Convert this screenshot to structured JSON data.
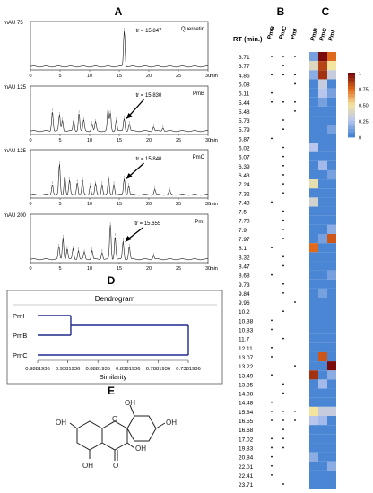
{
  "panels": {
    "A": "A",
    "B": "B",
    "C": "C",
    "D": "D",
    "E": "E"
  },
  "chart_data": [
    {
      "type": "line",
      "panel": "A",
      "x_unit": "min",
      "y_unit": "mAU",
      "x_ticks": [
        0,
        5,
        10,
        15,
        20,
        25,
        30
      ],
      "xlim": [
        0,
        30
      ],
      "chromatograms": [
        {
          "name": "Quercetin",
          "y_max_label": "75",
          "rt_annotation": "tr = 15.847",
          "peaks": [
            [
              15.847,
              1.0
            ]
          ]
        },
        {
          "name": "PmB",
          "y_max_label": "125",
          "rt_annotation": "tr = 15.830",
          "peaks": [
            [
              3.7,
              0.55
            ],
            [
              4.9,
              0.45
            ],
            [
              5.4,
              0.3
            ],
            [
              7.3,
              0.3
            ],
            [
              8.2,
              0.5
            ],
            [
              9.0,
              0.3
            ],
            [
              10.4,
              0.2
            ],
            [
              11.0,
              0.25
            ],
            [
              13.1,
              0.6
            ],
            [
              13.5,
              0.5
            ],
            [
              14.5,
              0.3
            ],
            [
              15.83,
              0.35
            ],
            [
              16.7,
              0.2
            ],
            [
              20.8,
              0.12
            ],
            [
              22.4,
              0.1
            ]
          ]
        },
        {
          "name": "PmC",
          "y_max_label": "125",
          "rt_annotation": "tr = 15.840",
          "peaks": [
            [
              3.7,
              0.3
            ],
            [
              4.9,
              0.85
            ],
            [
              5.8,
              0.55
            ],
            [
              6.6,
              0.4
            ],
            [
              7.9,
              0.35
            ],
            [
              8.8,
              0.4
            ],
            [
              10.1,
              0.25
            ],
            [
              11.0,
              0.3
            ],
            [
              12.1,
              0.3
            ],
            [
              13.2,
              0.45
            ],
            [
              14.1,
              0.3
            ],
            [
              15.84,
              0.45
            ],
            [
              16.6,
              0.25
            ],
            [
              21.0,
              0.15
            ],
            [
              23.5,
              0.12
            ]
          ]
        },
        {
          "name": "PmI",
          "y_max_label": "200",
          "rt_annotation": "tr = 15.655",
          "peaks": [
            [
              4.8,
              0.35
            ],
            [
              5.5,
              0.6
            ],
            [
              6.2,
              0.3
            ],
            [
              7.2,
              0.3
            ],
            [
              8.1,
              0.25
            ],
            [
              9.1,
              0.2
            ],
            [
              10.4,
              0.25
            ],
            [
              12.1,
              0.2
            ],
            [
              13.5,
              0.95
            ],
            [
              14.3,
              0.65
            ],
            [
              15.655,
              0.5
            ],
            [
              16.7,
              0.35
            ],
            [
              20.8,
              0.1
            ]
          ]
        }
      ]
    },
    {
      "type": "table",
      "panel": "B",
      "row_header": "RT (min.)",
      "columns": [
        "PmB",
        "PmC",
        "PmI"
      ],
      "rows": [
        {
          "rt": "3.71",
          "pm": [
            1,
            1,
            1
          ]
        },
        {
          "rt": "3.77",
          "pm": [
            0,
            1,
            0
          ]
        },
        {
          "rt": "4.86",
          "pm": [
            1,
            1,
            1
          ]
        },
        {
          "rt": "5.08",
          "pm": [
            0,
            0,
            1
          ]
        },
        {
          "rt": "5.11",
          "pm": [
            1,
            0,
            0
          ]
        },
        {
          "rt": "5.44",
          "pm": [
            1,
            1,
            1
          ]
        },
        {
          "rt": "5.48",
          "pm": [
            0,
            0,
            1
          ]
        },
        {
          "rt": "5.73",
          "pm": [
            0,
            1,
            0
          ]
        },
        {
          "rt": "5.79",
          "pm": [
            0,
            1,
            0
          ]
        },
        {
          "rt": "5.87",
          "pm": [
            1,
            0,
            0
          ]
        },
        {
          "rt": "6.02",
          "pm": [
            0,
            1,
            0
          ]
        },
        {
          "rt": "6.07",
          "pm": [
            0,
            1,
            0
          ]
        },
        {
          "rt": "6.39",
          "pm": [
            0,
            1,
            0
          ]
        },
        {
          "rt": "6.43",
          "pm": [
            0,
            1,
            0
          ]
        },
        {
          "rt": "7.24",
          "pm": [
            0,
            1,
            0
          ]
        },
        {
          "rt": "7.32",
          "pm": [
            0,
            1,
            0
          ]
        },
        {
          "rt": "7.43",
          "pm": [
            1,
            0,
            0
          ]
        },
        {
          "rt": "7.5",
          "pm": [
            0,
            1,
            0
          ]
        },
        {
          "rt": "7.78",
          "pm": [
            0,
            1,
            0
          ]
        },
        {
          "rt": "7.9",
          "pm": [
            0,
            1,
            0
          ]
        },
        {
          "rt": "7.97",
          "pm": [
            0,
            1,
            0
          ]
        },
        {
          "rt": "8.1",
          "pm": [
            1,
            0,
            0
          ]
        },
        {
          "rt": "8.32",
          "pm": [
            0,
            1,
            0
          ]
        },
        {
          "rt": "8.47",
          "pm": [
            0,
            1,
            0
          ]
        },
        {
          "rt": "8.68",
          "pm": [
            1,
            0,
            0
          ]
        },
        {
          "rt": "9.73",
          "pm": [
            0,
            1,
            0
          ]
        },
        {
          "rt": "9.84",
          "pm": [
            0,
            1,
            0
          ]
        },
        {
          "rt": "9.96",
          "pm": [
            0,
            0,
            1
          ]
        },
        {
          "rt": "10.2",
          "pm": [
            0,
            1,
            0
          ]
        },
        {
          "rt": "10.38",
          "pm": [
            1,
            0,
            0
          ]
        },
        {
          "rt": "10.83",
          "pm": [
            1,
            0,
            0
          ]
        },
        {
          "rt": "11.7",
          "pm": [
            0,
            1,
            0
          ]
        },
        {
          "rt": "12.11",
          "pm": [
            1,
            0,
            0
          ]
        },
        {
          "rt": "13.07",
          "pm": [
            1,
            0,
            0
          ]
        },
        {
          "rt": "13.22",
          "pm": [
            0,
            0,
            1
          ]
        },
        {
          "rt": "13.49",
          "pm": [
            1,
            0,
            0
          ]
        },
        {
          "rt": "13.85",
          "pm": [
            0,
            1,
            0
          ]
        },
        {
          "rt": "14.08",
          "pm": [
            0,
            1,
            0
          ]
        },
        {
          "rt": "14.48",
          "pm": [
            1,
            0,
            0
          ]
        },
        {
          "rt": "15.84",
          "pm": [
            1,
            1,
            1
          ]
        },
        {
          "rt": "16.55",
          "pm": [
            1,
            1,
            1
          ]
        },
        {
          "rt": "16.68",
          "pm": [
            0,
            1,
            0
          ]
        },
        {
          "rt": "17.02",
          "pm": [
            1,
            1,
            0
          ]
        },
        {
          "rt": "19.83",
          "pm": [
            1,
            1,
            0
          ]
        },
        {
          "rt": "20.84",
          "pm": [
            1,
            0,
            0
          ]
        },
        {
          "rt": "22.01",
          "pm": [
            1,
            0,
            0
          ]
        },
        {
          "rt": "22.41",
          "pm": [
            1,
            0,
            0
          ]
        },
        {
          "rt": "23.71",
          "pm": [
            0,
            1,
            0
          ]
        }
      ]
    },
    {
      "type": "heatmap",
      "panel": "C",
      "columns": [
        "PmB",
        "PmC",
        "PmI"
      ],
      "colorbar_ticks": [
        "1",
        "0.75",
        "0.50",
        "0.25",
        "0"
      ],
      "colorbar_values": [
        1,
        0.75,
        0.5,
        0.25,
        0
      ],
      "values": [
        [
          0.1,
          1.0,
          0.75
        ],
        [
          0.4,
          0.85,
          0.5
        ],
        [
          0.15,
          0.9,
          0.3
        ],
        [
          0.0,
          0.3,
          0.0
        ],
        [
          0.0,
          0.25,
          0.1
        ],
        [
          0.0,
          0.1,
          0.0
        ],
        [
          0.0,
          0.0,
          0.0
        ],
        [
          0.0,
          0.0,
          0.0
        ],
        [
          0.0,
          0.0,
          0.1
        ],
        [
          0.0,
          0.0,
          0.0
        ],
        [
          0.25,
          0.0,
          0.0
        ],
        [
          0.0,
          0.0,
          0.0
        ],
        [
          0.0,
          0.2,
          0.0
        ],
        [
          0.0,
          0.0,
          0.1
        ],
        [
          0.45,
          0.0,
          0.0
        ],
        [
          0.0,
          0.0,
          0.0
        ],
        [
          0.35,
          0.0,
          0.0
        ],
        [
          0.0,
          0.0,
          0.0
        ],
        [
          0.0,
          0.0,
          0.0
        ],
        [
          0.0,
          0.0,
          0.15
        ],
        [
          0.0,
          0.1,
          0.8
        ],
        [
          0.75,
          0.0,
          0.0
        ],
        [
          0.0,
          0.0,
          0.0
        ],
        [
          0.0,
          0.0,
          0.0
        ],
        [
          0.0,
          0.0,
          0.1
        ],
        [
          0.0,
          0.0,
          0.0
        ],
        [
          0.0,
          0.1,
          0.0
        ],
        [
          0.0,
          0.0,
          0.0
        ],
        [
          0.0,
          0.0,
          0.0
        ],
        [
          0.0,
          0.0,
          0.0
        ],
        [
          0.0,
          0.0,
          0.0
        ],
        [
          0.0,
          0.0,
          0.0
        ],
        [
          0.0,
          0.0,
          0.0
        ],
        [
          0.0,
          0.8,
          0.0
        ],
        [
          0.0,
          0.0,
          1.0
        ],
        [
          0.9,
          0.0,
          0.15
        ],
        [
          0.0,
          0.2,
          0.0
        ],
        [
          0.0,
          0.0,
          0.0
        ],
        [
          0.0,
          0.0,
          0.0
        ],
        [
          0.5,
          0.3,
          0.3
        ],
        [
          0.25,
          0.2,
          0.0
        ],
        [
          0.0,
          0.0,
          0.0
        ],
        [
          0.0,
          0.0,
          0.0
        ],
        [
          0.0,
          0.0,
          0.0
        ],
        [
          0.15,
          0.0,
          0.0
        ],
        [
          0.0,
          0.0,
          0.15
        ],
        [
          0.0,
          0.0,
          0.0
        ],
        [
          0.0,
          0.0,
          0.0
        ]
      ]
    },
    {
      "type": "dendrogram",
      "panel": "D",
      "title": "Dendrogram",
      "xlabel": "Similarity",
      "leaves": [
        "PmI",
        "PmB",
        "PmC"
      ],
      "x_ticks": [
        "0.9881936",
        "0.9381936",
        "0.8881936",
        "0.8381936",
        "0.7881936",
        "0.7381936"
      ],
      "xlim": [
        0.9881936,
        0.7381936
      ],
      "merges": [
        {
          "items": [
            "PmI",
            "PmB"
          ],
          "similarity": 0.9331936
        },
        {
          "items": [
            "PmI-PmB",
            "PmC"
          ],
          "similarity": 0.7381936
        }
      ]
    }
  ],
  "structure": {
    "substituent_label": "OH",
    "ring_oxygen_label": "O"
  },
  "colors": {
    "line": "#1a1a1a",
    "dendrogram": "#1f2a8c",
    "heat_low": "#4a86d4",
    "heat_mid": "#cfd8ee",
    "heat_high": "#7a0c0c"
  }
}
